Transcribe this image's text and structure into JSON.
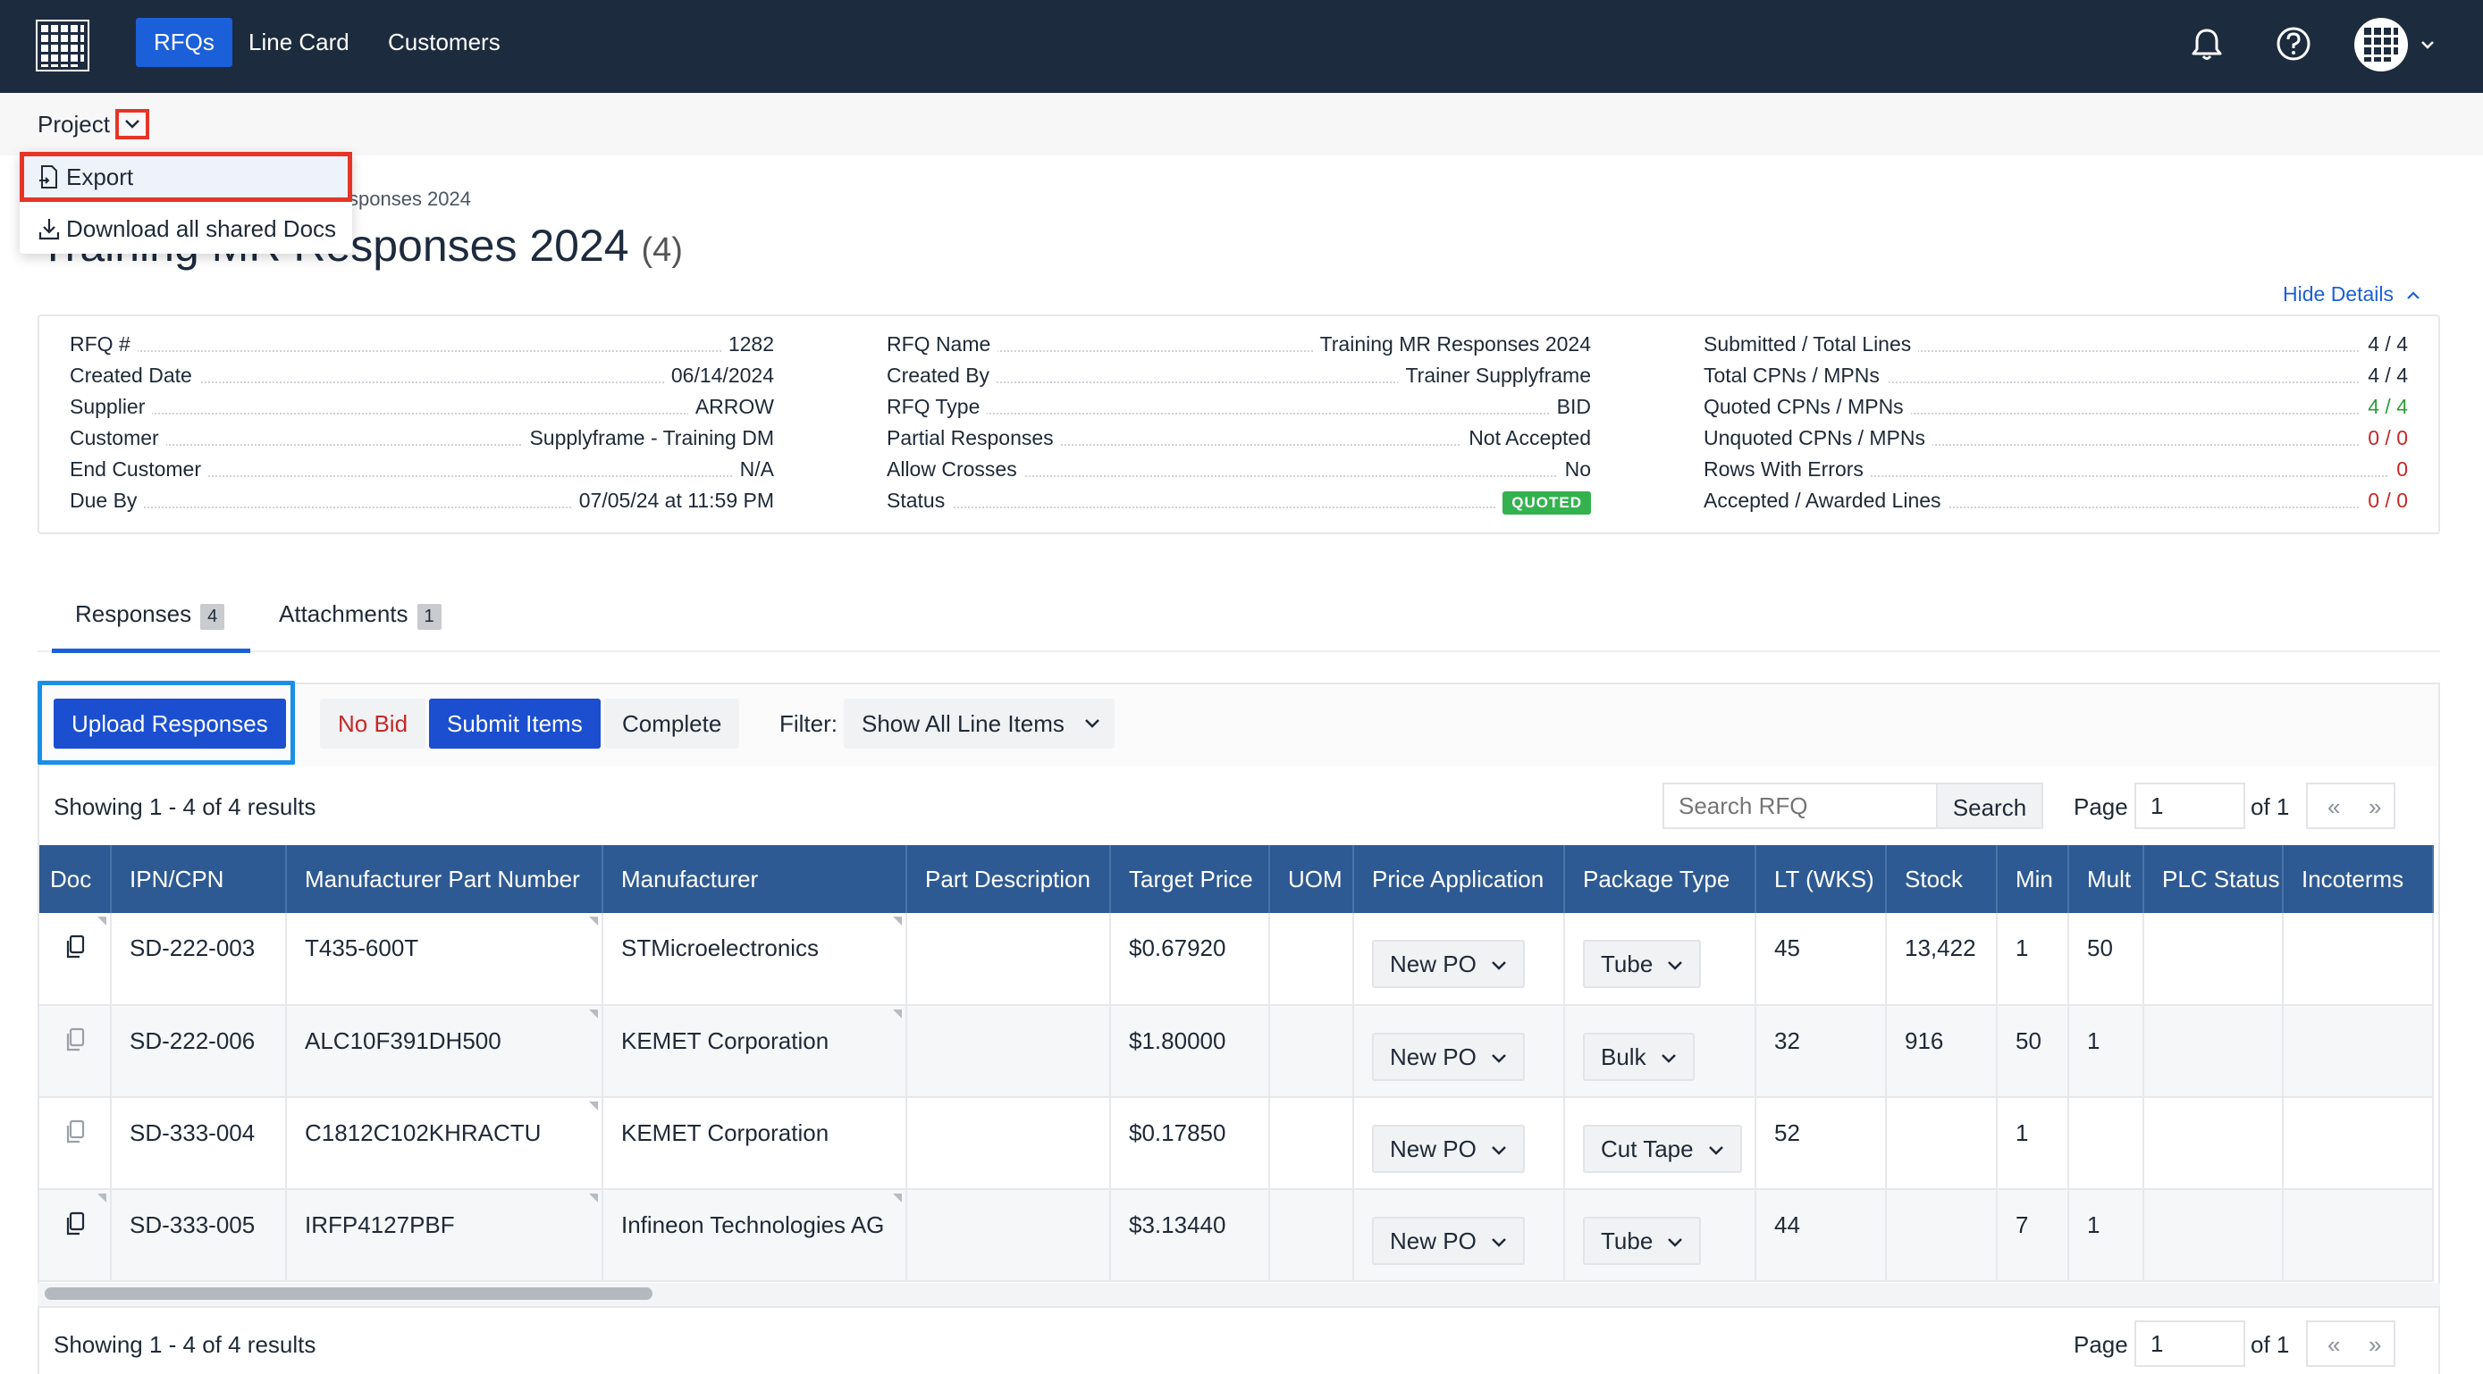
{
  "nav": {
    "items": [
      "RFQs",
      "Line Card",
      "Customers"
    ],
    "active": "RFQs"
  },
  "project": {
    "label": "Project",
    "menu": [
      "Export",
      "Download all shared Docs"
    ]
  },
  "breadcrumb": "sponses 2024",
  "page": {
    "title": "Training MR Responses 2024",
    "count": "(4)",
    "hide_details": "Hide Details"
  },
  "details": {
    "col1": [
      {
        "label": "RFQ #",
        "value": "1282"
      },
      {
        "label": "Created Date",
        "value": "06/14/2024"
      },
      {
        "label": "Supplier",
        "value": "ARROW"
      },
      {
        "label": "Customer",
        "value": "Supplyframe - Training DM"
      },
      {
        "label": "End Customer",
        "value": "N/A"
      },
      {
        "label": "Due By",
        "value": "07/05/24 at 11:59 PM"
      }
    ],
    "col2": [
      {
        "label": "RFQ Name",
        "value": "Training MR Responses 2024"
      },
      {
        "label": "Created By",
        "value": "Trainer Supplyframe"
      },
      {
        "label": "RFQ Type",
        "value": "BID"
      },
      {
        "label": "Partial Responses",
        "value": "Not Accepted"
      },
      {
        "label": "Allow Crosses",
        "value": "No"
      },
      {
        "label": "Status",
        "value": "QUOTED"
      }
    ],
    "col3": [
      {
        "label": "Submitted / Total Lines",
        "value": "4 / 4"
      },
      {
        "label": "Total CPNs / MPNs",
        "value": "4 / 4"
      },
      {
        "label": "Quoted CPNs / MPNs",
        "value": "4 / 4"
      },
      {
        "label": "Unquoted CPNs / MPNs",
        "value": "0 / 0"
      },
      {
        "label": "Rows With Errors",
        "value": "0"
      },
      {
        "label": "Accepted / Awarded Lines",
        "value": "0 / 0"
      }
    ]
  },
  "tabs": [
    {
      "label": "Responses",
      "count": "4"
    },
    {
      "label": "Attachments",
      "count": "1"
    }
  ],
  "toolbar": {
    "upload": "Upload Responses",
    "no_bid": "No Bid",
    "submit": "Submit Items",
    "complete": "Complete",
    "filter_label": "Filter:",
    "filter_value": "Show All Line Items"
  },
  "results": {
    "showing": "Showing 1 - 4 of 4 results",
    "search_placeholder": "Search RFQ",
    "search_button": "Search",
    "page_label": "Page",
    "page_value": "1",
    "of": "of 1",
    "prev": "«",
    "next": "»"
  },
  "table": {
    "headers": [
      "Doc",
      "IPN/CPN",
      "Manufacturer Part Number",
      "Manufacturer",
      "Part Description",
      "Target Price",
      "UOM",
      "Price Application",
      "Package Type",
      "LT (WKS)",
      "Stock",
      "Min",
      "Mult",
      "PLC Status",
      "Incoterms"
    ],
    "rows": [
      {
        "cpn": "SD-222-003",
        "mpn": "T435-600T",
        "mfr": "STMicroelectronics",
        "desc": "",
        "price": "$0.67920",
        "uom": "",
        "app": "New PO",
        "pkg": "Tube",
        "lt": "45",
        "stock": "13,422",
        "min": "1",
        "mult": "50",
        "plc": "",
        "inco": ""
      },
      {
        "cpn": "SD-222-006",
        "mpn": "ALC10F391DH500",
        "mfr": "KEMET Corporation",
        "desc": "",
        "price": "$1.80000",
        "uom": "",
        "app": "New PO",
        "pkg": "Bulk",
        "lt": "32",
        "stock": "916",
        "min": "50",
        "mult": "1",
        "plc": "",
        "inco": ""
      },
      {
        "cpn": "SD-333-004",
        "mpn": "C1812C102KHRACTU",
        "mfr": "KEMET Corporation",
        "desc": "",
        "price": "$0.17850",
        "uom": "",
        "app": "New PO",
        "pkg": "Cut Tape",
        "lt": "52",
        "stock": "",
        "min": "1",
        "mult": "",
        "plc": "",
        "inco": ""
      },
      {
        "cpn": "SD-333-005",
        "mpn": "IRFP4127PBF",
        "mfr": "Infineon Technologies AG",
        "desc": "",
        "price": "$3.13440",
        "uom": "",
        "app": "New PO",
        "pkg": "Tube",
        "lt": "44",
        "stock": "",
        "min": "7",
        "mult": "1",
        "plc": "",
        "inco": ""
      }
    ]
  },
  "colors": {
    "nav_bg": "#1d2b3e",
    "accent": "#1b5fd9",
    "table_header": "#2e5a93",
    "quoted_badge": "#34b24f",
    "highlight_red": "#e53527",
    "highlight_blue": "#1b8fe6"
  },
  "icons": [
    "app-grid-icon",
    "bell-icon",
    "help-icon",
    "avatar-grid-icon",
    "chevron-down-icon",
    "export-icon",
    "download-icon",
    "copy-doc-icon",
    "chevron-up-icon"
  ]
}
